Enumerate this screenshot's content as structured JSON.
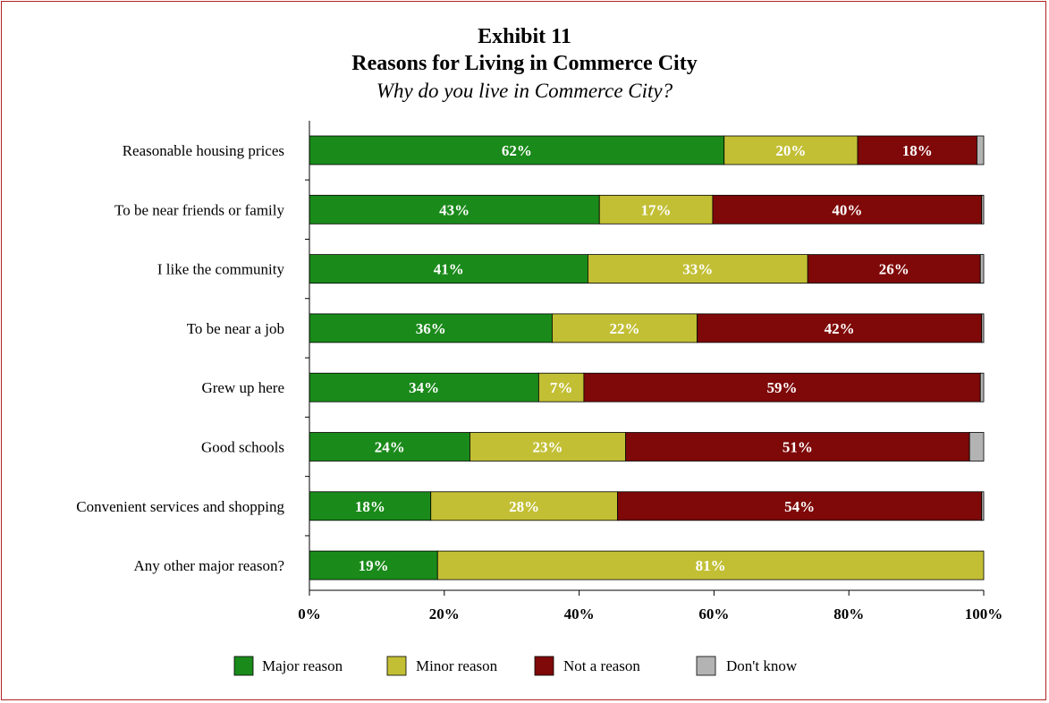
{
  "exhibit": "Exhibit 11",
  "title": "Reasons for Living in Commerce City",
  "subtitle": "Why do you live in Commerce City?",
  "colors": {
    "major": "#1a8a1a",
    "minor": "#c2bf35",
    "not": "#7f0808",
    "dontknow": "#b3b3b3",
    "frame": "#b22222"
  },
  "chart_data": {
    "type": "bar",
    "orientation": "horizontal",
    "stacked": true,
    "categories": [
      "Reasonable housing prices",
      "To be near friends or family",
      "I like the community",
      "To be near a job",
      "Grew up here",
      "Good schools",
      "Convenient services and shopping",
      "Any other major reason?"
    ],
    "series": [
      {
        "name": "Major reason",
        "values": [
          61.5,
          43.0,
          41.3,
          36.0,
          34.0,
          23.8,
          18.0,
          19.0
        ],
        "labels": [
          "62%",
          "43%",
          "41%",
          "36%",
          "34%",
          "24%",
          "18%",
          "19%"
        ]
      },
      {
        "name": "Minor reason",
        "values": [
          19.8,
          16.8,
          32.6,
          21.5,
          6.7,
          23.1,
          27.7,
          81.0
        ],
        "labels": [
          "20%",
          "17%",
          "33%",
          "22%",
          "7%",
          "23%",
          "28%",
          "81%"
        ]
      },
      {
        "name": "Not a reason",
        "values": [
          17.7,
          39.9,
          25.6,
          42.2,
          58.8,
          51.0,
          54.0,
          0.0
        ],
        "labels": [
          "18%",
          "40%",
          "26%",
          "42%",
          "59%",
          "51%",
          "54%",
          ""
        ]
      },
      {
        "name": "Don't know",
        "values": [
          1.0,
          0.3,
          0.5,
          0.3,
          0.5,
          2.1,
          0.3,
          0.0
        ],
        "labels": [
          "",
          "",
          "",
          "",
          "",
          "",
          "",
          ""
        ]
      }
    ],
    "xticks": [
      "0%",
      "20%",
      "40%",
      "60%",
      "80%",
      "100%"
    ],
    "xlim": [
      0,
      100
    ],
    "legend_position": "bottom",
    "grid": false
  }
}
